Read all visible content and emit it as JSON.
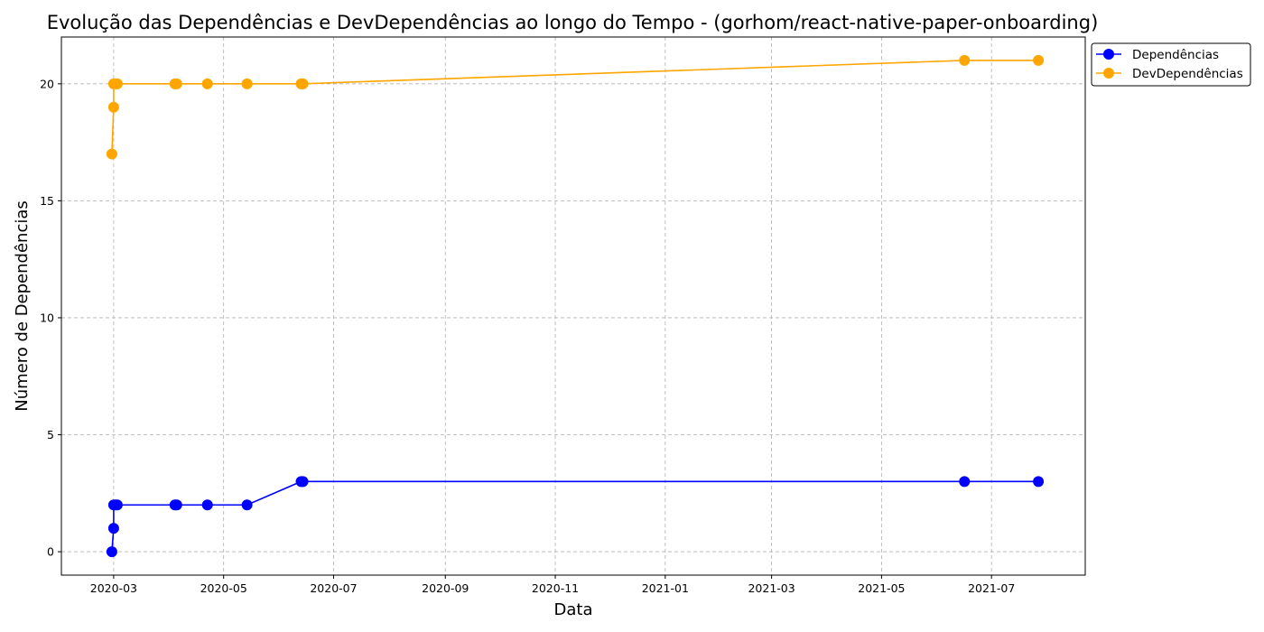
{
  "chart_data": {
    "type": "line",
    "title": "Evolução das Dependências e DevDependências ao longo do Tempo - (gorhom/react-native-paper-onboarding)",
    "xlabel": "Data",
    "ylabel": "Número de Dependências",
    "x_type": "date",
    "xlim": [
      "2020-02-01",
      "2021-08-22"
    ],
    "ylim": [
      -1,
      22
    ],
    "x_ticks": [
      {
        "date": "2020-03-01",
        "label": "2020-03"
      },
      {
        "date": "2020-05-01",
        "label": "2020-05"
      },
      {
        "date": "2020-07-01",
        "label": "2020-07"
      },
      {
        "date": "2020-09-01",
        "label": "2020-09"
      },
      {
        "date": "2020-11-01",
        "label": "2020-11"
      },
      {
        "date": "2021-01-01",
        "label": "2021-01"
      },
      {
        "date": "2021-03-01",
        "label": "2021-03"
      },
      {
        "date": "2021-05-01",
        "label": "2021-05"
      },
      {
        "date": "2021-07-01",
        "label": "2021-07"
      }
    ],
    "y_ticks": [
      0,
      5,
      10,
      15,
      20
    ],
    "grid": true,
    "legend_position": "outside-top-right",
    "series": [
      {
        "name": "Dependências",
        "color": "#0000ff",
        "marker": "circle",
        "points": [
          {
            "x": "2020-02-29",
            "y": 0
          },
          {
            "x": "2020-03-01",
            "y": 1
          },
          {
            "x": "2020-03-01",
            "y": 2
          },
          {
            "x": "2020-03-02",
            "y": 2
          },
          {
            "x": "2020-03-03",
            "y": 2
          },
          {
            "x": "2020-04-04",
            "y": 2
          },
          {
            "x": "2020-04-05",
            "y": 2
          },
          {
            "x": "2020-04-22",
            "y": 2
          },
          {
            "x": "2020-05-14",
            "y": 2
          },
          {
            "x": "2020-06-13",
            "y": 3
          },
          {
            "x": "2020-06-14",
            "y": 3
          },
          {
            "x": "2021-06-16",
            "y": 3
          },
          {
            "x": "2021-07-27",
            "y": 3
          }
        ]
      },
      {
        "name": "DevDependências",
        "color": "#ffa500",
        "marker": "circle",
        "points": [
          {
            "x": "2020-02-29",
            "y": 17
          },
          {
            "x": "2020-03-01",
            "y": 19
          },
          {
            "x": "2020-03-01",
            "y": 20
          },
          {
            "x": "2020-03-02",
            "y": 20
          },
          {
            "x": "2020-03-03",
            "y": 20
          },
          {
            "x": "2020-04-04",
            "y": 20
          },
          {
            "x": "2020-04-05",
            "y": 20
          },
          {
            "x": "2020-04-22",
            "y": 20
          },
          {
            "x": "2020-05-14",
            "y": 20
          },
          {
            "x": "2020-06-13",
            "y": 20
          },
          {
            "x": "2020-06-14",
            "y": 20
          },
          {
            "x": "2021-06-16",
            "y": 21
          },
          {
            "x": "2021-07-27",
            "y": 21
          }
        ]
      }
    ]
  }
}
